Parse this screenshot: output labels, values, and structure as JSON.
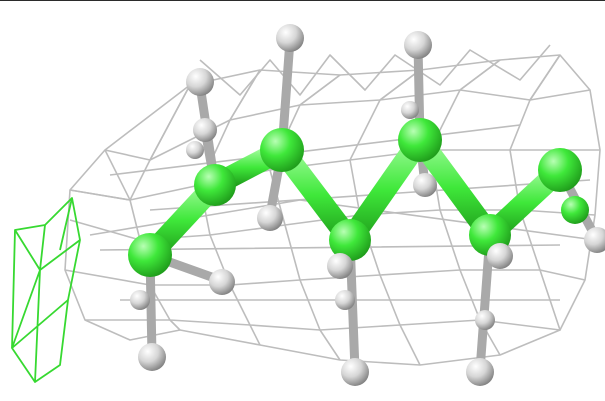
{
  "scene": {
    "colors": {
      "background": "#ffffff",
      "carbon": "#3fe83a",
      "carbon_dark": "#21a81c",
      "hydrogen": "#d0d0d0",
      "hydrogen_dark": "#8e8e8e",
      "mesh": "#bdbdbd",
      "mesh_green": "#37d931"
    },
    "molecule": {
      "heavy_atoms": 8,
      "hydrogens": 18
    }
  }
}
